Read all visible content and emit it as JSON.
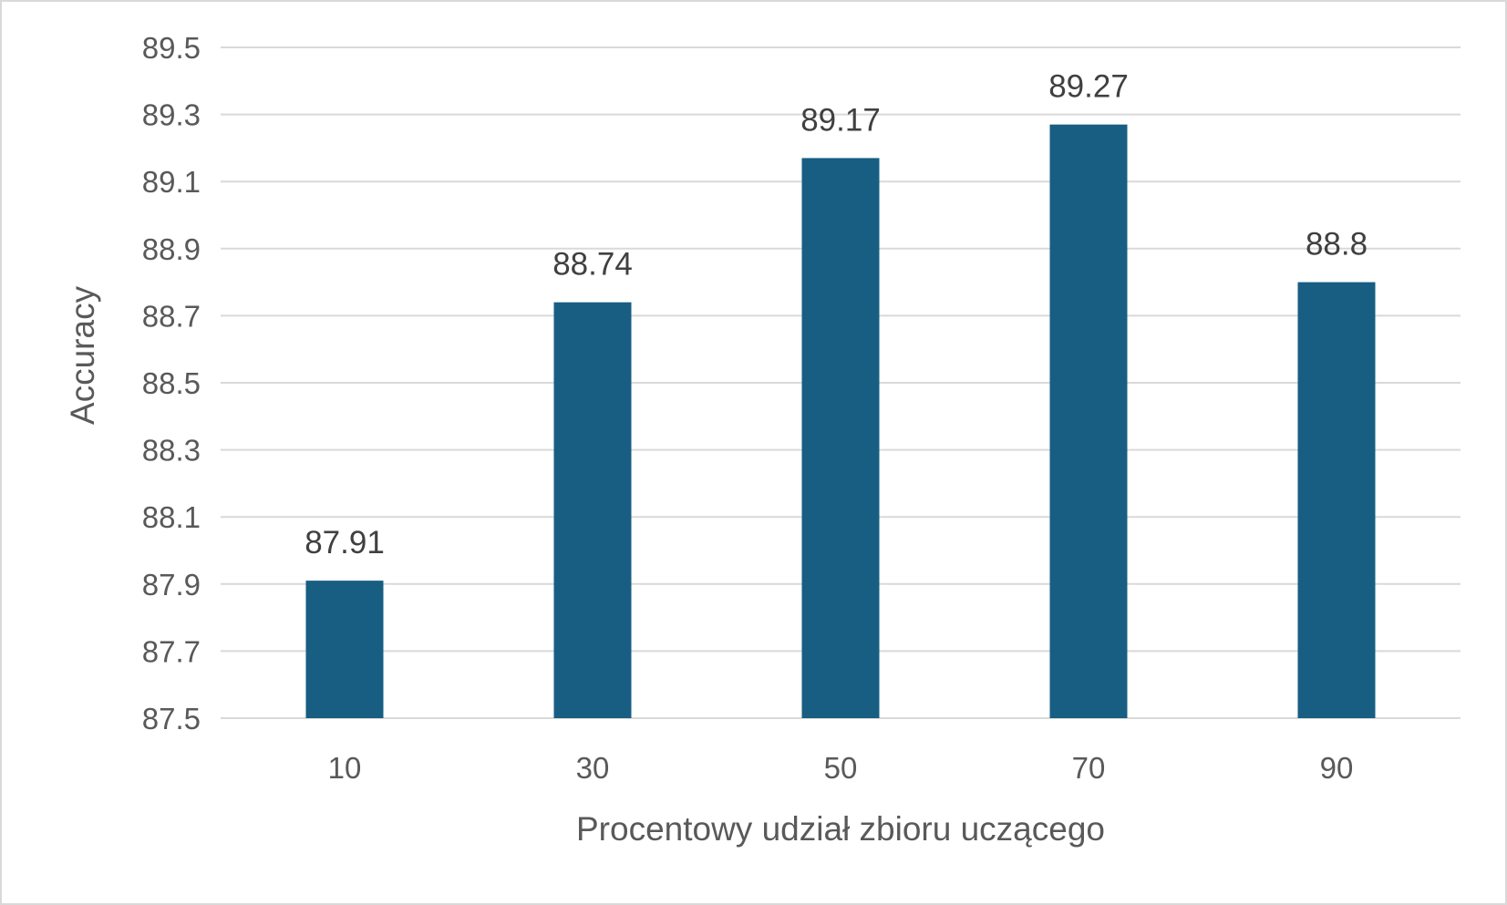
{
  "chart_data": {
    "type": "bar",
    "title": "",
    "xlabel": "Procentowy udział zbioru uczącego",
    "ylabel": "Accuracy",
    "categories": [
      "10",
      "30",
      "50",
      "70",
      "90"
    ],
    "values": [
      87.91,
      88.74,
      89.17,
      89.27,
      88.8
    ],
    "data_labels": [
      "87.91",
      "88.74",
      "89.17",
      "89.27",
      "88.8"
    ],
    "ylim": [
      87.5,
      89.5
    ],
    "yticks": [
      87.5,
      87.7,
      87.9,
      88.1,
      88.3,
      88.5,
      88.7,
      88.9,
      89.1,
      89.3,
      89.5
    ],
    "ytick_labels": [
      "87.5",
      "87.7",
      "87.9",
      "88.1",
      "88.3",
      "88.5",
      "88.7",
      "88.9",
      "89.1",
      "89.3",
      "89.5"
    ],
    "grid": true,
    "legend": "none",
    "bar_color": "#175e82",
    "grid_color": "#d9d9d9"
  }
}
